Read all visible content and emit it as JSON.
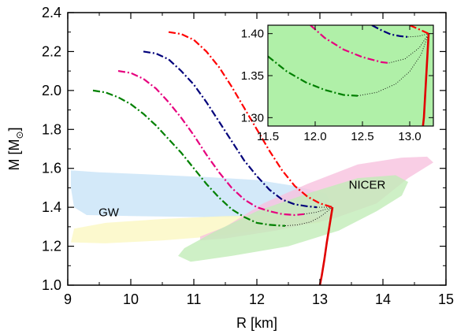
{
  "chart_data": {
    "type": "line",
    "main": {
      "xlabel": "R [km]",
      "ylabel_main": "M [M",
      "ylabel_sub": "⊙",
      "ylabel_close": "]",
      "xlim": [
        9,
        15
      ],
      "ylim": [
        1.0,
        2.4
      ],
      "xticks": [
        9,
        10,
        11,
        12,
        13,
        14,
        15
      ],
      "yticks": [
        1.0,
        1.2,
        1.4,
        1.6,
        1.8,
        2.0,
        2.2,
        2.4
      ],
      "xtick_labels": [
        "9",
        "10",
        "11",
        "12",
        "13",
        "14",
        "15"
      ],
      "ytick_labels": [
        "1.0",
        "1.2",
        "1.4",
        "1.6",
        "1.8",
        "2.0",
        "2.2",
        "2.4"
      ]
    },
    "regions": [
      {
        "label": "",
        "color": "#c8e4f8",
        "polygon": [
          [
            9.05,
            1.59
          ],
          [
            9.5,
            1.58
          ],
          [
            10.2,
            1.57
          ],
          [
            11.2,
            1.555
          ],
          [
            12.0,
            1.54
          ],
          [
            12.6,
            1.51
          ],
          [
            13.1,
            1.47
          ],
          [
            13.2,
            1.4
          ],
          [
            13.05,
            1.35
          ],
          [
            12.0,
            1.35
          ],
          [
            11.0,
            1.35
          ],
          [
            10.0,
            1.355
          ],
          [
            9.3,
            1.36
          ],
          [
            9.1,
            1.4
          ],
          [
            9.05,
            1.5
          ]
        ]
      },
      {
        "label": "",
        "color": "#fbf7c2",
        "polygon": [
          [
            9.05,
            1.22
          ],
          [
            9.6,
            1.215
          ],
          [
            10.5,
            1.23
          ],
          [
            11.3,
            1.25
          ],
          [
            12.0,
            1.28
          ],
          [
            12.6,
            1.305
          ],
          [
            13.0,
            1.32
          ],
          [
            13.1,
            1.35
          ],
          [
            12.6,
            1.36
          ],
          [
            11.5,
            1.355
          ],
          [
            10.5,
            1.34
          ],
          [
            9.6,
            1.32
          ],
          [
            9.1,
            1.29
          ]
        ]
      },
      {
        "label": "",
        "color": "#f8c2df",
        "polygon": [
          [
            11.1,
            1.23
          ],
          [
            11.5,
            1.24
          ],
          [
            12.3,
            1.28
          ],
          [
            13.2,
            1.34
          ],
          [
            13.9,
            1.42
          ],
          [
            14.4,
            1.55
          ],
          [
            14.8,
            1.63
          ],
          [
            14.7,
            1.66
          ],
          [
            14.3,
            1.655
          ],
          [
            13.6,
            1.62
          ],
          [
            12.8,
            1.52
          ],
          [
            12.1,
            1.42
          ],
          [
            11.5,
            1.3
          ],
          [
            11.1,
            1.25
          ]
        ]
      },
      {
        "label": "",
        "color": "#c2ecb8",
        "polygon": [
          [
            10.75,
            1.15
          ],
          [
            10.95,
            1.12
          ],
          [
            11.6,
            1.15
          ],
          [
            12.5,
            1.2
          ],
          [
            13.3,
            1.28
          ],
          [
            13.9,
            1.38
          ],
          [
            14.3,
            1.46
          ],
          [
            14.4,
            1.53
          ],
          [
            14.2,
            1.565
          ],
          [
            13.6,
            1.55
          ],
          [
            12.8,
            1.47
          ],
          [
            12.0,
            1.38
          ],
          [
            11.3,
            1.27
          ],
          [
            10.85,
            1.19
          ]
        ]
      }
    ],
    "annotations": [
      {
        "text": "GW",
        "x": 9.65,
        "y": 1.355
      },
      {
        "text": "NICER",
        "x": 13.75,
        "y": 1.495
      }
    ],
    "series": [
      {
        "color": "#008000",
        "points": [
          [
            9.4,
            2.0
          ],
          [
            9.6,
            1.99
          ],
          [
            9.8,
            1.965
          ],
          [
            10.0,
            1.93
          ],
          [
            10.2,
            1.88
          ],
          [
            10.4,
            1.82
          ],
          [
            10.6,
            1.75
          ],
          [
            10.8,
            1.68
          ],
          [
            11.0,
            1.6
          ],
          [
            11.2,
            1.52
          ],
          [
            11.4,
            1.45
          ],
          [
            11.6,
            1.39
          ],
          [
            11.8,
            1.35
          ],
          [
            12.0,
            1.32
          ],
          [
            12.2,
            1.31
          ],
          [
            12.4,
            1.305
          ],
          [
            12.45,
            1.305
          ]
        ],
        "dotted": [
          [
            12.45,
            1.305
          ],
          [
            12.65,
            1.31
          ],
          [
            12.85,
            1.325
          ],
          [
            13.0,
            1.35
          ],
          [
            13.12,
            1.38
          ],
          [
            13.2,
            1.4
          ]
        ]
      },
      {
        "color": "#e6007e",
        "points": [
          [
            9.8,
            2.1
          ],
          [
            10.0,
            2.09
          ],
          [
            10.2,
            2.06
          ],
          [
            10.4,
            2.01
          ],
          [
            10.6,
            1.94
          ],
          [
            10.8,
            1.86
          ],
          [
            11.0,
            1.77
          ],
          [
            11.2,
            1.67
          ],
          [
            11.4,
            1.58
          ],
          [
            11.6,
            1.5
          ],
          [
            11.8,
            1.44
          ],
          [
            12.0,
            1.4
          ],
          [
            12.2,
            1.38
          ],
          [
            12.4,
            1.365
          ],
          [
            12.6,
            1.36
          ],
          [
            12.75,
            1.365
          ]
        ],
        "dotted": [
          [
            12.75,
            1.365
          ],
          [
            12.95,
            1.375
          ],
          [
            13.1,
            1.39
          ],
          [
            13.2,
            1.4
          ]
        ]
      },
      {
        "color": "#00007a",
        "points": [
          [
            10.2,
            2.2
          ],
          [
            10.4,
            2.19
          ],
          [
            10.6,
            2.16
          ],
          [
            10.8,
            2.1
          ],
          [
            11.0,
            2.03
          ],
          [
            11.2,
            1.94
          ],
          [
            11.4,
            1.84
          ],
          [
            11.6,
            1.74
          ],
          [
            11.8,
            1.64
          ],
          [
            12.0,
            1.56
          ],
          [
            12.2,
            1.49
          ],
          [
            12.4,
            1.44
          ],
          [
            12.6,
            1.415
          ],
          [
            12.8,
            1.405
          ],
          [
            12.95,
            1.4
          ]
        ],
        "dotted": [
          [
            12.95,
            1.4
          ],
          [
            13.1,
            1.4
          ],
          [
            13.2,
            1.4
          ]
        ]
      },
      {
        "color": "#ff0000",
        "points": [
          [
            10.6,
            2.3
          ],
          [
            10.8,
            2.29
          ],
          [
            11.0,
            2.26
          ],
          [
            11.2,
            2.2
          ],
          [
            11.4,
            2.12
          ],
          [
            11.6,
            2.02
          ],
          [
            11.8,
            1.91
          ],
          [
            12.0,
            1.8
          ],
          [
            12.2,
            1.69
          ],
          [
            12.4,
            1.59
          ],
          [
            12.6,
            1.51
          ],
          [
            12.8,
            1.455
          ],
          [
            13.0,
            1.42
          ],
          [
            13.15,
            1.405
          ],
          [
            13.2,
            1.4
          ]
        ],
        "dotted": []
      }
    ],
    "solid_branch": {
      "color": "#e00000",
      "points": [
        [
          13.2,
          1.4
        ],
        [
          13.18,
          1.36
        ],
        [
          13.15,
          1.3
        ],
        [
          13.11,
          1.22
        ],
        [
          13.07,
          1.13
        ],
        [
          13.03,
          1.05
        ],
        [
          13.0,
          1.0
        ]
      ]
    },
    "inset": {
      "xlim": [
        11.5,
        13.25
      ],
      "ylim": [
        1.29,
        1.41
      ],
      "xticks": [
        11.5,
        12.0,
        12.5,
        13.0
      ],
      "yticks": [
        1.3,
        1.35,
        1.4
      ],
      "xtick_labels": [
        "11.5",
        "12.0",
        "12.5",
        "13.0"
      ],
      "ytick_labels": [
        "1.30",
        "1.35",
        "1.40"
      ],
      "background": "#b0f0a8",
      "series": [
        {
          "color": "#008000",
          "points": [
            [
              11.5,
              1.373
            ],
            [
              11.7,
              1.355
            ],
            [
              11.9,
              1.342
            ],
            [
              12.1,
              1.333
            ],
            [
              12.3,
              1.327
            ],
            [
              12.45,
              1.326
            ]
          ],
          "dotted": [
            [
              12.45,
              1.326
            ],
            [
              12.65,
              1.33
            ],
            [
              12.85,
              1.34
            ],
            [
              13.0,
              1.355
            ],
            [
              13.12,
              1.375
            ],
            [
              13.2,
              1.4
            ]
          ]
        },
        {
          "color": "#e6007e",
          "points": [
            [
              11.95,
              1.41
            ],
            [
              12.1,
              1.395
            ],
            [
              12.3,
              1.381
            ],
            [
              12.5,
              1.372
            ],
            [
              12.7,
              1.366
            ],
            [
              12.78,
              1.365
            ]
          ],
          "dotted": [
            [
              12.78,
              1.365
            ],
            [
              12.95,
              1.37
            ],
            [
              13.1,
              1.383
            ],
            [
              13.2,
              1.4
            ]
          ]
        },
        {
          "color": "#00007a",
          "points": [
            [
              12.6,
              1.41
            ],
            [
              12.7,
              1.404
            ],
            [
              12.8,
              1.399
            ],
            [
              12.9,
              1.397
            ],
            [
              12.98,
              1.396
            ]
          ],
          "dotted": [
            [
              12.98,
              1.396
            ],
            [
              13.1,
              1.397
            ],
            [
              13.2,
              1.4
            ]
          ]
        },
        {
          "color": "#ff0000",
          "points": [
            [
              13.0,
              1.41
            ],
            [
              13.1,
              1.405
            ],
            [
              13.18,
              1.401
            ],
            [
              13.2,
              1.4
            ]
          ],
          "dotted": []
        }
      ],
      "solid_branch": {
        "color": "#e00000",
        "points": [
          [
            13.2,
            1.4
          ],
          [
            13.19,
            1.38
          ],
          [
            13.18,
            1.36
          ],
          [
            13.17,
            1.34
          ],
          [
            13.16,
            1.32
          ],
          [
            13.15,
            1.3
          ],
          [
            13.14,
            1.29
          ]
        ]
      }
    }
  }
}
